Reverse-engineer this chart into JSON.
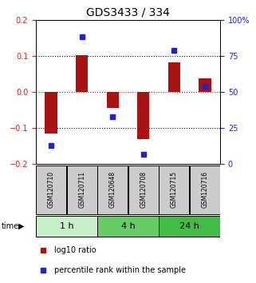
{
  "title": "GDS3433 / 334",
  "samples": [
    "GSM120710",
    "GSM120711",
    "GSM120648",
    "GSM120708",
    "GSM120715",
    "GSM120716"
  ],
  "groups": [
    {
      "label": "1 h",
      "indices": [
        0,
        1
      ],
      "color": "#c8eec8"
    },
    {
      "label": "4 h",
      "indices": [
        2,
        3
      ],
      "color": "#66cc66"
    },
    {
      "label": "24 h",
      "indices": [
        4,
        5
      ],
      "color": "#44bb44"
    }
  ],
  "log10_ratio": [
    -0.115,
    0.102,
    -0.045,
    -0.13,
    0.082,
    0.038
  ],
  "percentile_rank": [
    13,
    88,
    33,
    7,
    79,
    54
  ],
  "ylim_left": [
    -0.2,
    0.2
  ],
  "ylim_right": [
    0,
    100
  ],
  "bar_color": "#aa1111",
  "dot_color": "#2222cc",
  "title_color": "black",
  "left_tick_color": "#cc2222",
  "right_tick_color": "#2222cc",
  "sample_box_color": "#cccccc"
}
